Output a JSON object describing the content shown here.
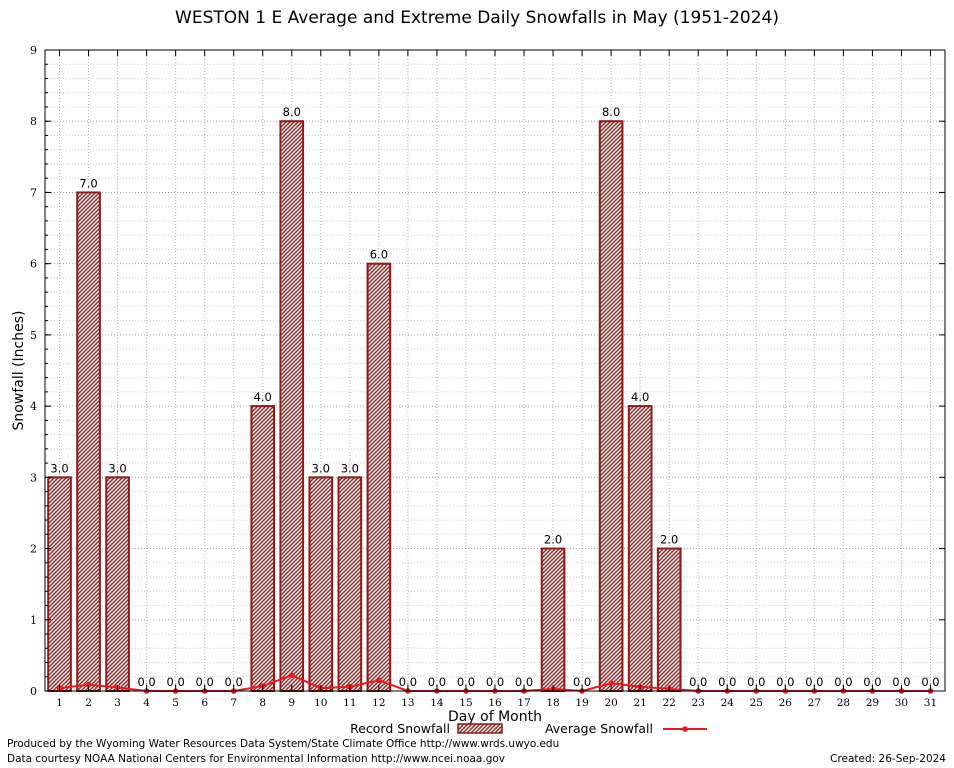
{
  "chart_data": {
    "type": "bar",
    "title": "WESTON 1 E Average and Extreme Daily Snowfalls in May (1951-2024)",
    "xlabel": "Day of Month",
    "ylabel": "Snowfall (Inches)",
    "ylim": [
      0,
      9
    ],
    "yticks": [
      "0",
      "1",
      "2",
      "3",
      "4",
      "5",
      "6",
      "7",
      "8",
      "9"
    ],
    "categories": [
      "1",
      "2",
      "3",
      "4",
      "5",
      "6",
      "7",
      "8",
      "9",
      "10",
      "11",
      "12",
      "13",
      "14",
      "15",
      "16",
      "17",
      "18",
      "19",
      "20",
      "21",
      "22",
      "23",
      "24",
      "25",
      "26",
      "27",
      "28",
      "29",
      "30",
      "31"
    ],
    "series": [
      {
        "name": "Record Snowfall",
        "kind": "bar",
        "color": "#8b1a1a",
        "values": [
          3.0,
          7.0,
          3.0,
          0.0,
          0.0,
          0.0,
          0.0,
          4.0,
          8.0,
          3.0,
          3.0,
          6.0,
          0.0,
          0.0,
          0.0,
          0.0,
          0.0,
          2.0,
          0.0,
          8.0,
          4.0,
          2.0,
          0.0,
          0.0,
          0.0,
          0.0,
          0.0,
          0.0,
          0.0,
          0.0,
          0.0
        ],
        "labels": [
          "3.0",
          "7.0",
          "3.0",
          "0.0",
          "0.0",
          "0.0",
          "0.0",
          "4.0",
          "8.0",
          "3.0",
          "3.0",
          "6.0",
          "0.0",
          "0.0",
          "0.0",
          "0.0",
          "0.0",
          "2.0",
          "0.0",
          "8.0",
          "4.0",
          "2.0",
          "0.0",
          "0.0",
          "0.0",
          "0.0",
          "0.0",
          "0.0",
          "0.0",
          "0.0",
          "0.0"
        ]
      },
      {
        "name": "Average Snowfall",
        "kind": "line",
        "color": "#e8191f",
        "values": [
          0.04,
          0.09,
          0.05,
          0.0,
          0.0,
          0.0,
          0.0,
          0.07,
          0.22,
          0.04,
          0.06,
          0.15,
          0.0,
          0.0,
          0.0,
          0.0,
          0.0,
          0.03,
          0.0,
          0.11,
          0.06,
          0.03,
          0.0,
          0.0,
          0.0,
          0.0,
          0.0,
          0.0,
          0.0,
          0.0,
          0.0
        ]
      }
    ],
    "legend": "bottom-center",
    "grid": true
  },
  "footer": {
    "produced_by": "Produced by the Wyoming Water Resources Data System/State Climate Office http://www.wrds.uwyo.edu",
    "data_courtesy": "Data courtesy NOAA National Centers for Environmental Information http://www.ncei.noaa.gov",
    "created": "Created:  26-Sep-2024"
  }
}
